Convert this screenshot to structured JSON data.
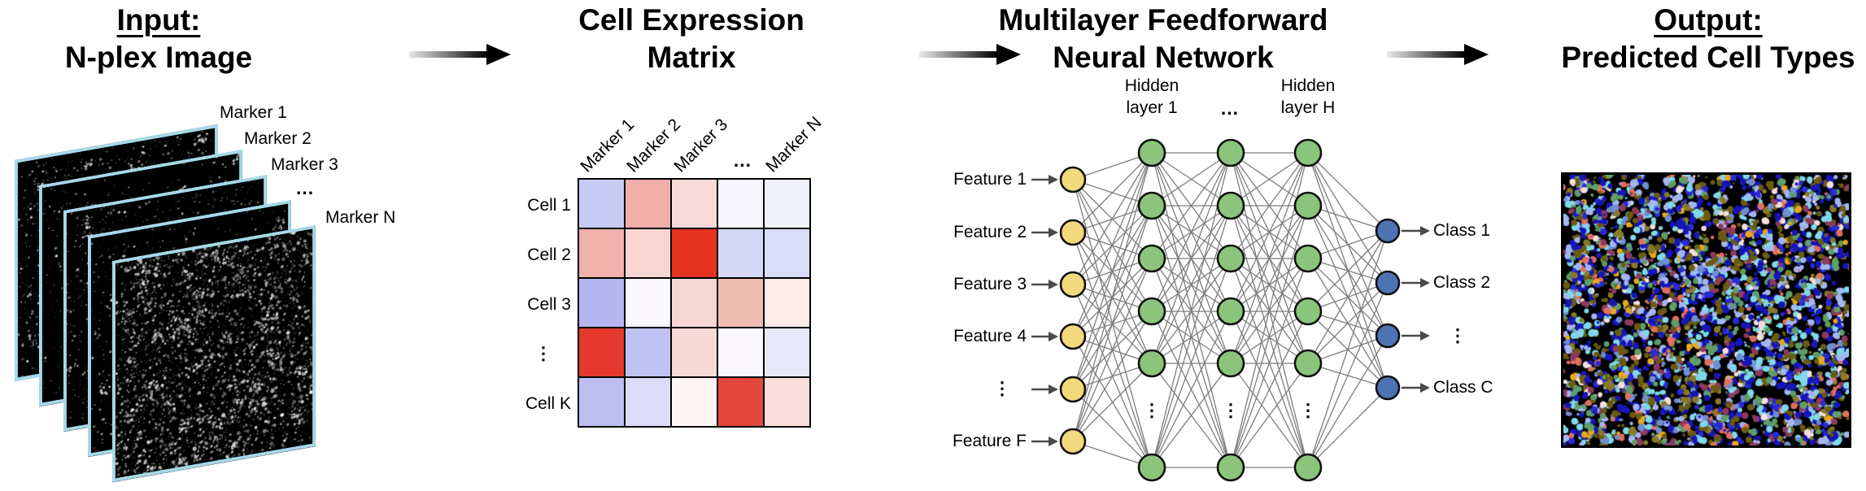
{
  "sections": {
    "input": {
      "title_line1": "Input:",
      "title_line2": "N-plex Image",
      "marker_labels": [
        "Marker 1",
        "Marker 2",
        "Marker 3",
        "...",
        "Marker N"
      ]
    },
    "matrix": {
      "title_line1": "Cell Expression",
      "title_line2": "Matrix",
      "col_labels": [
        "Marker 1",
        "Marker 2",
        "Marker 3",
        "...",
        "Marker N"
      ],
      "row_labels": [
        "Cell 1",
        "Cell 2",
        "Cell 3",
        "⋮",
        "Cell K"
      ],
      "cells": [
        [
          "#c7cbf4",
          "#efaeaa",
          "#f8dbd8",
          "#f7f6fd",
          "#f1f3fc"
        ],
        [
          "#f0b0ac",
          "#f7d6d2",
          "#e53322",
          "#d5d7f7",
          "#dadcf8"
        ],
        [
          "#b5b6f0",
          "#faf8fe",
          "#f7d7d3",
          "#eebcb3",
          "#fcebe7"
        ],
        [
          "#e4392c",
          "#bfc3f2",
          "#f5dad5",
          "#faf8fe",
          "#e7e9fa"
        ],
        [
          "#bdbdf1",
          "#dcdcf7",
          "#fdf5f3",
          "#e4473c",
          "#f9dedb"
        ]
      ]
    },
    "network": {
      "title_line1": "Multilayer Feedforward",
      "title_line2": "Neural Network",
      "hidden_layer_left": {
        "line1": "Hidden",
        "line2": "layer 1"
      },
      "hidden_layer_dots": "...",
      "hidden_layer_right": {
        "line1": "Hidden",
        "line2": "layer H"
      },
      "input_labels": [
        "Feature 1",
        "Feature 2",
        "Feature 3",
        "Feature 4",
        "⋮",
        "Feature F"
      ],
      "output_labels": [
        "Class 1",
        "Class 2",
        "⋮",
        "Class C"
      ],
      "column_dots": "⋮",
      "colors": {
        "input_node": "#f2d97b",
        "hidden_node": "#8bc57b",
        "output_node": "#4e73b2",
        "node_border": "#111111",
        "edge": "#7d7d7d",
        "arrow": "#4a4a4a"
      }
    },
    "output": {
      "title_line1": "Output:",
      "title_line2": "Predicted Cell Types",
      "palette": [
        "#1616b8",
        "#2a2ad4",
        "#7fd9ea",
        "#a4b6f2",
        "#6b5b10",
        "#8a7a28",
        "#5f9e68",
        "#8e3a5e",
        "#e1705f",
        "#f5dfd8",
        "#e8a81e",
        "#6f8fd0"
      ]
    },
    "stack_border_color": "#a5d9ea"
  }
}
